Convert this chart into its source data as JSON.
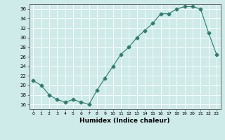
{
  "x": [
    0,
    1,
    2,
    3,
    4,
    5,
    6,
    7,
    8,
    9,
    10,
    11,
    12,
    13,
    14,
    15,
    16,
    17,
    18,
    19,
    20,
    21,
    22,
    23
  ],
  "y": [
    21,
    20,
    18,
    17,
    16.5,
    17,
    16.5,
    16,
    19,
    21.5,
    24,
    26.5,
    28,
    30,
    31.5,
    33,
    35,
    35,
    36,
    36.5,
    36.5,
    36,
    31,
    26.5
  ],
  "line_color": "#2e7d6e",
  "marker": "D",
  "marker_size": 2.5,
  "bg_color": "#ceeae9",
  "grid_color": "#ffffff",
  "xlabel": "Humidex (Indice chaleur)",
  "ylim": [
    15,
    37
  ],
  "xlim": [
    -0.5,
    23.5
  ],
  "yticks": [
    16,
    18,
    20,
    22,
    24,
    26,
    28,
    30,
    32,
    34,
    36
  ],
  "xticks": [
    0,
    1,
    2,
    3,
    4,
    5,
    6,
    7,
    8,
    9,
    10,
    11,
    12,
    13,
    14,
    15,
    16,
    17,
    18,
    19,
    20,
    21,
    22,
    23
  ]
}
